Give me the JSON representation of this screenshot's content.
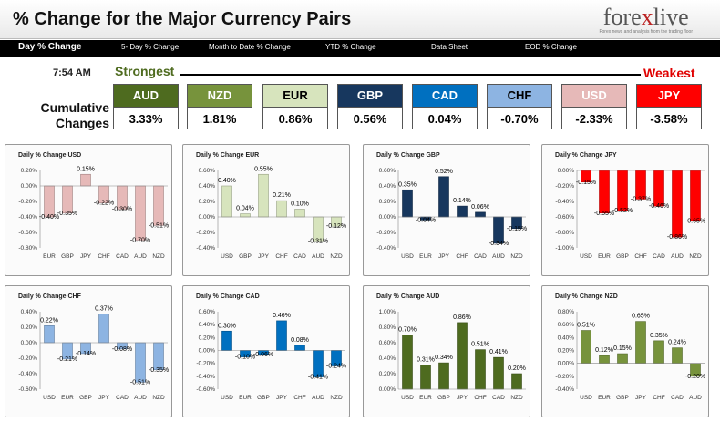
{
  "header": {
    "title": "% Change for the Major Currency Pairs",
    "logo_left": "fore",
    "logo_x": "x",
    "logo_right": "live",
    "logo_sub": "Forex news and analysis from the trading floor"
  },
  "nav": {
    "items": [
      {
        "label": "Day % Change"
      },
      {
        "label": "5- Day % Change"
      },
      {
        "label": "Month to Date % Change"
      },
      {
        "label": "YTD % Change"
      },
      {
        "label": "Data Sheet"
      },
      {
        "label": "EOD % Change"
      }
    ]
  },
  "summary": {
    "time": "7:54 AM",
    "strongest": "Strongest",
    "weakest": "Weakest",
    "cumulative_label": "Cumulative Changes",
    "currencies": [
      {
        "code": "AUD",
        "value": "3.33%",
        "color": "#4e6b1f",
        "text_color": "#ffffff"
      },
      {
        "code": "NZD",
        "value": "1.81%",
        "color": "#77933c",
        "text_color": "#ffffff"
      },
      {
        "code": "EUR",
        "value": "0.86%",
        "color": "#d7e4bd",
        "text_color": "#000000"
      },
      {
        "code": "GBP",
        "value": "0.56%",
        "color": "#17375e",
        "text_color": "#ffffff"
      },
      {
        "code": "CAD",
        "value": "0.04%",
        "color": "#0070c0",
        "text_color": "#ffffff"
      },
      {
        "code": "CHF",
        "value": "-0.70%",
        "color": "#8db4e2",
        "text_color": "#000000"
      },
      {
        "code": "USD",
        "value": "-2.33%",
        "color": "#e6b9b8",
        "text_color": "#ffffff"
      },
      {
        "code": "JPY",
        "value": "-3.58%",
        "color": "#ff0000",
        "text_color": "#ffffff"
      }
    ]
  },
  "chart_data": [
    {
      "type": "bar",
      "title": "Daily % Change USD",
      "categories": [
        "EUR",
        "GBP",
        "JPY",
        "CHF",
        "CAD",
        "AUD",
        "NZD"
      ],
      "values": [
        -0.4,
        -0.35,
        0.15,
        -0.22,
        -0.3,
        -0.7,
        -0.51
      ],
      "labels": [
        "-0.40%",
        "-0.35%",
        "0.15%",
        "-0.22%",
        "-0.30%",
        "-0.70%",
        "-0.51%"
      ],
      "ylim": [
        -0.8,
        0.2
      ],
      "ticks": [
        "0.20%",
        "0.00%",
        "-0.20%",
        "-0.40%",
        "-0.60%",
        "-0.80%"
      ],
      "color": "#e6b9b8",
      "grid": false
    },
    {
      "type": "bar",
      "title": "Daily % Change EUR",
      "categories": [
        "USD",
        "GBP",
        "JPY",
        "CHF",
        "CAD",
        "AUD",
        "NZD"
      ],
      "values": [
        0.4,
        0.04,
        0.55,
        0.21,
        0.1,
        -0.31,
        -0.12
      ],
      "labels": [
        "0.40%",
        "0.04%",
        "0.55%",
        "0.21%",
        "0.10%",
        "-0.31%",
        "-0.12%"
      ],
      "ylim": [
        -0.4,
        0.6
      ],
      "ticks": [
        "0.60%",
        "0.40%",
        "0.20%",
        "0.00%",
        "-0.20%",
        "-0.40%"
      ],
      "color": "#d7e4bd",
      "grid": false
    },
    {
      "type": "bar",
      "title": "Daily % Change GBP",
      "categories": [
        "USD",
        "EUR",
        "JPY",
        "CHF",
        "CAD",
        "AUD",
        "NZD"
      ],
      "values": [
        0.35,
        -0.04,
        0.52,
        0.14,
        0.06,
        -0.34,
        -0.15
      ],
      "labels": [
        "0.35%",
        "-0.04%",
        "0.52%",
        "0.14%",
        "0.06%",
        "-0.34%",
        "-0.15%"
      ],
      "ylim": [
        -0.4,
        0.6
      ],
      "ticks": [
        "0.60%",
        "0.40%",
        "0.20%",
        "0.00%",
        "-0.20%",
        "-0.40%"
      ],
      "color": "#17375e",
      "grid": false
    },
    {
      "type": "bar",
      "title": "Daily % Change JPY",
      "categories": [
        "USD",
        "EUR",
        "GBP",
        "CHF",
        "CAD",
        "AUD",
        "NZD"
      ],
      "values": [
        -0.15,
        -0.55,
        -0.52,
        -0.37,
        -0.46,
        -0.86,
        -0.65
      ],
      "labels": [
        "-0.15%",
        "-0.55%",
        "-0.52%",
        "-0.37%",
        "-0.46%",
        "-0.86%",
        "-0.65%"
      ],
      "ylim": [
        -1.0,
        0.0
      ],
      "ticks": [
        "0.00%",
        "-0.20%",
        "-0.40%",
        "-0.60%",
        "-0.80%",
        "-1.00%"
      ],
      "color": "#ff0000",
      "grid": false
    },
    {
      "type": "bar",
      "title": "Daily % Change CHF",
      "categories": [
        "USD",
        "EUR",
        "GBP",
        "JPY",
        "CAD",
        "AUD",
        "NZD"
      ],
      "values": [
        0.22,
        -0.21,
        -0.14,
        0.37,
        -0.08,
        -0.51,
        -0.35
      ],
      "labels": [
        "0.22%",
        "-0.21%",
        "-0.14%",
        "0.37%",
        "-0.08%",
        "-0.51%",
        "-0.35%"
      ],
      "ylim": [
        -0.6,
        0.4
      ],
      "ticks": [
        "0.40%",
        "0.20%",
        "0.00%",
        "-0.20%",
        "-0.40%",
        "-0.60%"
      ],
      "color": "#8db4e2",
      "grid": false
    },
    {
      "type": "bar",
      "title": "Daily % Change CAD",
      "categories": [
        "USD",
        "EUR",
        "GBP",
        "JPY",
        "CHF",
        "AUD",
        "NZD"
      ],
      "values": [
        0.3,
        -0.1,
        -0.06,
        0.46,
        0.08,
        -0.41,
        -0.24
      ],
      "labels": [
        "0.30%",
        "-0.10%",
        "-0.06%",
        "0.46%",
        "0.08%",
        "-0.41%",
        "-0.24%"
      ],
      "ylim": [
        -0.6,
        0.6
      ],
      "ticks": [
        "0.60%",
        "0.40%",
        "0.20%",
        "0.00%",
        "-0.20%",
        "-0.40%",
        "-0.60%"
      ],
      "color": "#0070c0",
      "grid": false
    },
    {
      "type": "bar",
      "title": "Daily % Change AUD",
      "categories": [
        "USD",
        "EUR",
        "GBP",
        "JPY",
        "CHF",
        "CAD",
        "NZD"
      ],
      "values": [
        0.7,
        0.31,
        0.34,
        0.86,
        0.51,
        0.41,
        0.2
      ],
      "labels": [
        "0.70%",
        "0.31%",
        "0.34%",
        "0.86%",
        "0.51%",
        "0.41%",
        "0.20%"
      ],
      "ylim": [
        0.0,
        1.0
      ],
      "ticks": [
        "1.00%",
        "0.80%",
        "0.60%",
        "0.40%",
        "0.20%",
        "0.00%"
      ],
      "color": "#4e6b1f",
      "grid": false
    },
    {
      "type": "bar",
      "title": "Daily % Change NZD",
      "categories": [
        "USD",
        "EUR",
        "GBP",
        "JPY",
        "CHF",
        "CAD",
        "AUD"
      ],
      "values": [
        0.51,
        0.12,
        0.15,
        0.65,
        0.35,
        0.24,
        -0.2
      ],
      "labels": [
        "0.51%",
        "0.12%",
        "0.15%",
        "0.65%",
        "0.35%",
        "0.24%",
        "-0.20%"
      ],
      "ylim": [
        -0.4,
        0.8
      ],
      "ticks": [
        "0.80%",
        "0.60%",
        "0.40%",
        "0.20%",
        "0.00%",
        "-0.20%",
        "-0.40%"
      ],
      "color": "#77933c",
      "grid": false
    }
  ]
}
